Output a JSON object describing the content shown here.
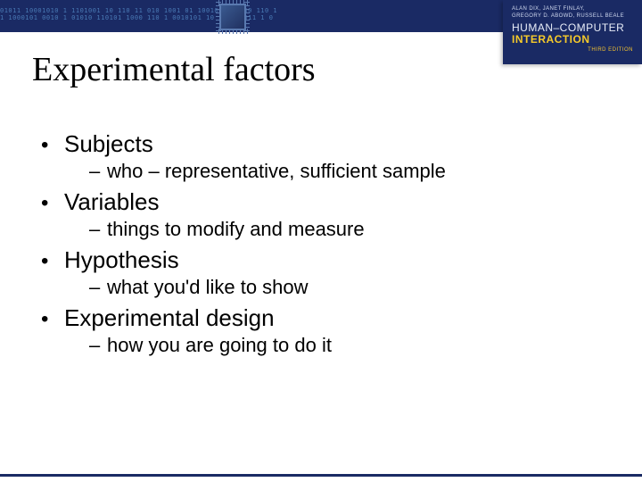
{
  "colors": {
    "brand_navy": "#1a2a64",
    "accent_yellow": "#f6ca2a",
    "binary_blue": "#4a7ab5",
    "text": "#000000",
    "background": "#ffffff"
  },
  "typography": {
    "title_font": "Comic Sans MS",
    "body_font": "Verdana",
    "title_size_pt": 38,
    "bullet_size_pt": 26,
    "subbullet_size_pt": 22
  },
  "header": {
    "binary_line1": "01011 10001010 1 1101001 10 110 11 010 1001 01 100100 11 100 110 11 1",
    "binary_line2": "1 1000101 0010 1 01010 110101 1000 110 1 0010101 10 1 010 011 1 0 110",
    "book": {
      "authors_line1": "ALAN DIX, JANET FINLAY,",
      "authors_line2": "GREGORY D. ABOWD, RUSSELL BEALE",
      "title_line1": "HUMAN–COMPUTER",
      "title_line2": "INTERACTION",
      "edition": "THIRD EDITION"
    }
  },
  "slide": {
    "title": "Experimental factors",
    "items": [
      {
        "label": "Subjects",
        "sub": "who – representative,  sufficient sample"
      },
      {
        "label": "Variables",
        "sub": "things to modify and measure"
      },
      {
        "label": "Hypothesis",
        "sub": "what you'd like to show"
      },
      {
        "label": "Experimental design",
        "sub": "how you are going to do it"
      }
    ]
  }
}
